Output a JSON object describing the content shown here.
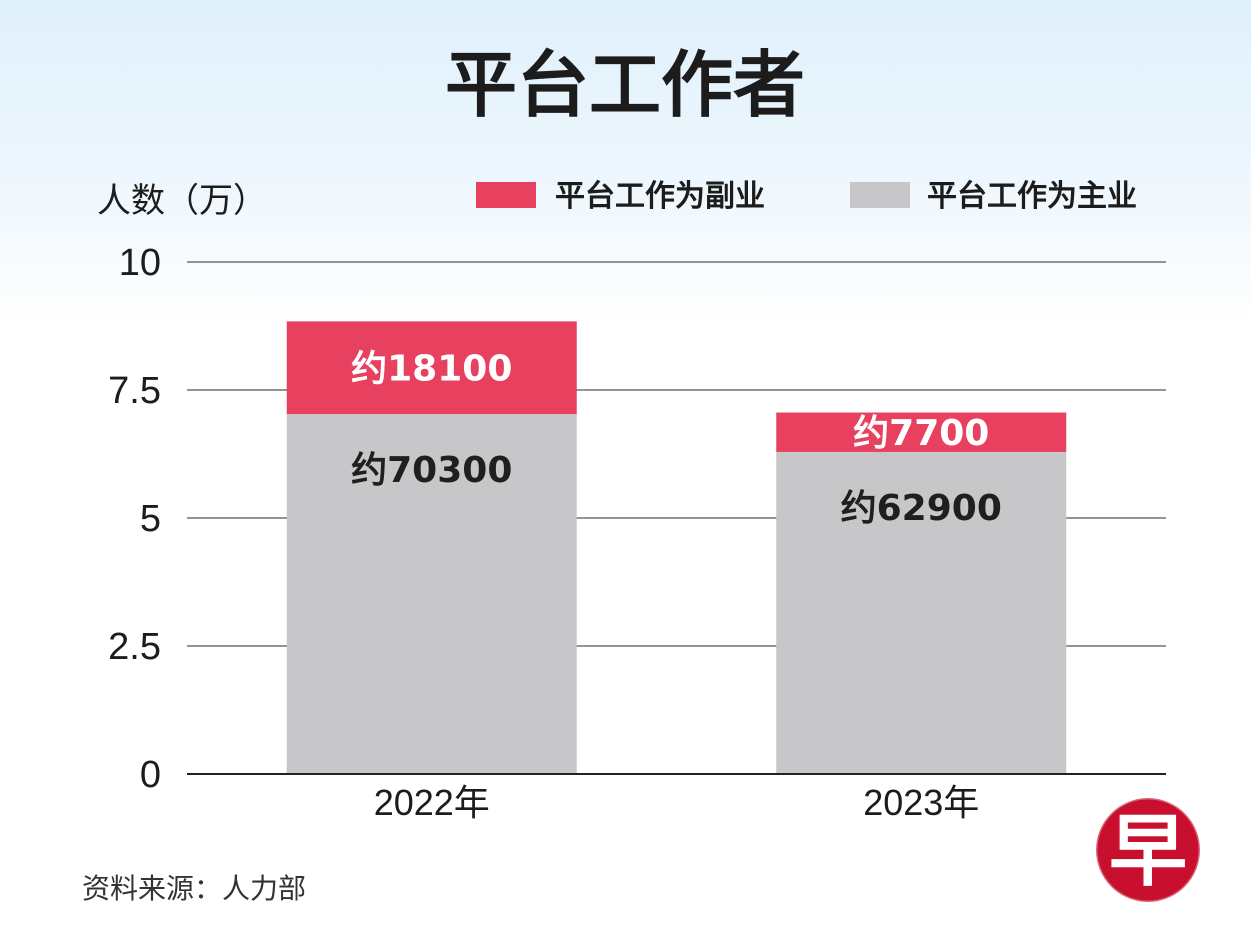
{
  "chart_data": {
    "type": "bar",
    "stacked": true,
    "title": "平台工作者",
    "ylabel": "人数（万）",
    "categories": [
      "2022年",
      "2023年"
    ],
    "ylim": [
      0,
      10
    ],
    "yticks": [
      "0",
      "2.5",
      "5",
      "7.5",
      "10"
    ],
    "ytick_values": [
      0,
      2.5,
      5,
      7.5,
      10
    ],
    "grid": true,
    "legend_position": "top-right",
    "series": [
      {
        "name": "平台工作为主业",
        "color": "#c7c7c9",
        "values": [
          7.03,
          6.29
        ],
        "labels": [
          "约70300",
          "约62900"
        ]
      },
      {
        "name": "平台工作为副业",
        "color": "#e8405f",
        "values": [
          1.81,
          0.77
        ],
        "labels": [
          "约18100",
          "约7700"
        ]
      }
    ],
    "source": "资料来源：人力部"
  },
  "logo": {
    "text": "早",
    "icon": "zaobao-logo-icon",
    "color": "#c8102e"
  }
}
